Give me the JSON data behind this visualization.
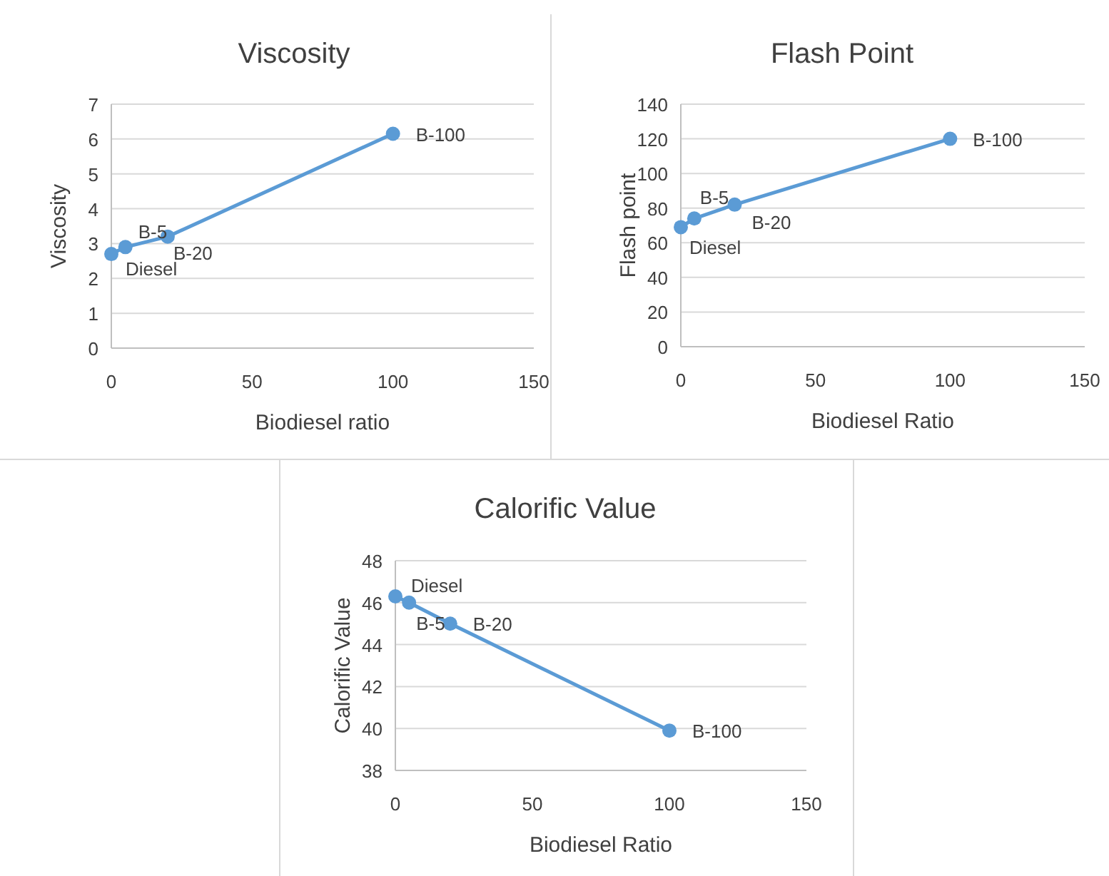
{
  "chart_data": [
    {
      "type": "line",
      "title": "Viscosity",
      "xlabel": "Biodiesel ratio",
      "ylabel": "Viscosity",
      "x": [
        0,
        5,
        20,
        100
      ],
      "xlim": [
        0,
        150
      ],
      "xticks": [
        0,
        50,
        100,
        150
      ],
      "ylim": [
        0,
        7
      ],
      "yticks": [
        0,
        1,
        2,
        3,
        4,
        5,
        6,
        7
      ],
      "grid": "y",
      "marker": "circle",
      "line_style": "solid",
      "series": [
        {
          "color": "#5b9bd5",
          "values": [
            2.7,
            2.9,
            3.2,
            6.15
          ]
        }
      ],
      "annotations": [
        {
          "text": "Diesel",
          "x": 0,
          "y": 2.7
        },
        {
          "text": "B-5",
          "x": 5,
          "y": 2.9
        },
        {
          "text": "B-20",
          "x": 20,
          "y": 3.2
        },
        {
          "text": "B-100",
          "x": 100,
          "y": 6.15
        }
      ]
    },
    {
      "type": "line",
      "title": "Flash Point",
      "xlabel": "Biodiesel Ratio",
      "ylabel": "Flash point",
      "x": [
        0,
        5,
        20,
        100
      ],
      "xlim": [
        0,
        150
      ],
      "xticks": [
        0,
        50,
        100,
        150
      ],
      "ylim": [
        0,
        140
      ],
      "yticks": [
        0,
        20,
        40,
        60,
        80,
        100,
        120,
        140
      ],
      "grid": "y",
      "marker": "circle",
      "line_style": "solid",
      "series": [
        {
          "color": "#5b9bd5",
          "values": [
            69,
            74,
            82,
            120
          ]
        }
      ],
      "annotations": [
        {
          "text": "Diesel",
          "x": 0,
          "y": 69
        },
        {
          "text": "B-5",
          "x": 5,
          "y": 74
        },
        {
          "text": "B-20",
          "x": 20,
          "y": 82
        },
        {
          "text": "B-100",
          "x": 100,
          "y": 120
        }
      ]
    },
    {
      "type": "line",
      "title": "Calorific Value",
      "xlabel": "Biodiesel Ratio",
      "ylabel": "Calorific Value",
      "x": [
        0,
        5,
        20,
        100
      ],
      "xlim": [
        0,
        150
      ],
      "xticks": [
        0,
        50,
        100,
        150
      ],
      "ylim": [
        38,
        48
      ],
      "yticks": [
        38,
        40,
        42,
        44,
        46,
        48
      ],
      "grid": "y",
      "marker": "circle",
      "line_style": "solid",
      "series": [
        {
          "color": "#5b9bd5",
          "values": [
            46.3,
            46.0,
            45.0,
            39.9
          ]
        }
      ],
      "annotations": [
        {
          "text": "Diesel",
          "x": 0,
          "y": 46.3
        },
        {
          "text": "B-5",
          "x": 5,
          "y": 46.0
        },
        {
          "text": "B-20",
          "x": 20,
          "y": 45.0
        },
        {
          "text": "B-100",
          "x": 100,
          "y": 39.9
        }
      ]
    }
  ]
}
